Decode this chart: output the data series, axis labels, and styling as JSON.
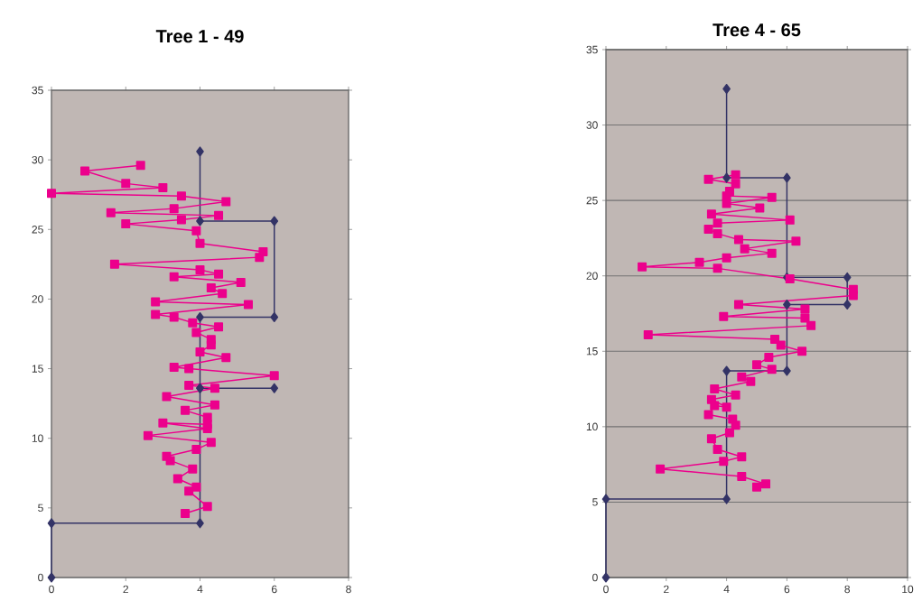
{
  "chart_data": [
    {
      "type": "line",
      "title": "Tree 1 - 49",
      "xlim": [
        0,
        8
      ],
      "ylim": [
        0,
        35
      ],
      "xticks": [
        0,
        2,
        4,
        6,
        8
      ],
      "yticks": [
        0,
        5,
        10,
        15,
        20,
        25,
        30,
        35
      ],
      "grid": false,
      "series": [
        {
          "color": "#333366",
          "marker": "diamond",
          "x": [
            0,
            0,
            4,
            4,
            6,
            4,
            4,
            6,
            6,
            4,
            4
          ],
          "values": [
            0,
            3.9,
            3.9,
            13.6,
            13.6,
            13.6,
            18.7,
            18.7,
            25.6,
            25.6,
            30.6
          ]
        },
        {
          "color": "#ec008c",
          "marker": "square",
          "x": [
            3.6,
            4.2,
            3.7,
            3.9,
            3.4,
            3.8,
            3.2,
            3.1,
            3.9,
            4.3,
            2.6,
            4.2,
            3.0,
            4.2,
            4.2,
            3.6,
            4.4,
            3.1,
            4.4,
            3.7,
            6.0,
            3.7,
            3.3,
            4.7,
            4.0,
            4.3,
            4.3,
            3.9,
            4.5,
            3.8,
            3.3,
            2.8,
            5.3,
            2.8,
            4.6,
            4.3,
            5.1,
            3.3,
            4.5,
            4.0,
            1.7,
            5.6,
            5.7,
            4.0,
            3.9,
            2.0,
            3.5,
            4.5,
            1.6,
            3.3,
            4.7,
            3.5,
            0,
            3.0,
            2.0,
            0.9,
            2.4
          ],
          "values": [
            4.6,
            5.1,
            6.2,
            6.5,
            7.1,
            7.8,
            8.4,
            8.7,
            9.2,
            9.7,
            10.2,
            10.7,
            11.1,
            11.0,
            11.5,
            12.0,
            12.4,
            13.0,
            13.6,
            13.8,
            14.5,
            15.0,
            15.1,
            15.8,
            16.2,
            16.7,
            17.1,
            17.6,
            18.0,
            18.3,
            18.7,
            18.9,
            19.6,
            19.8,
            20.4,
            20.8,
            21.2,
            21.6,
            21.8,
            22.1,
            22.5,
            23.0,
            23.4,
            24.0,
            24.9,
            25.4,
            25.7,
            26.0,
            26.2,
            26.5,
            27.0,
            27.4,
            27.6,
            28.0,
            28.3,
            29.2,
            29.6
          ]
        }
      ]
    },
    {
      "type": "line",
      "title": "Tree 4 - 65",
      "xlim": [
        0,
        10
      ],
      "ylim": [
        0,
        35
      ],
      "xticks": [
        0,
        2,
        4,
        6,
        8,
        10
      ],
      "yticks": [
        0,
        5,
        10,
        15,
        20,
        25,
        30,
        35
      ],
      "grid": "y",
      "series": [
        {
          "color": "#333366",
          "marker": "diamond",
          "x": [
            0,
            0,
            4,
            4,
            6,
            6,
            8,
            8,
            6,
            6,
            4,
            4
          ],
          "values": [
            0,
            5.2,
            5.2,
            13.7,
            13.7,
            18.1,
            18.1,
            19.9,
            19.9,
            26.5,
            26.5,
            32.4
          ]
        },
        {
          "color": "#ec008c",
          "marker": "square",
          "x": [
            5.0,
            5.3,
            4.5,
            1.8,
            3.9,
            4.5,
            3.7,
            3.5,
            4.1,
            4.3,
            4.2,
            3.4,
            3.6,
            4.0,
            3.5,
            4.3,
            3.6,
            4.8,
            4.5,
            5.5,
            5.0,
            5.4,
            6.5,
            5.8,
            5.6,
            1.4,
            6.8,
            6.6,
            3.9,
            6.6,
            4.4,
            8.2,
            8.2,
            6.1,
            3.7,
            1.2,
            3.1,
            4.0,
            5.5,
            4.6,
            6.3,
            4.4,
            3.7,
            3.4,
            3.7,
            6.1,
            3.5,
            5.1,
            4.0,
            5.5,
            4.0,
            4.1,
            4.3,
            3.4,
            4.3
          ],
          "values": [
            6.0,
            6.2,
            6.7,
            7.2,
            7.7,
            8.0,
            8.5,
            9.2,
            9.6,
            10.1,
            10.5,
            10.8,
            11.4,
            11.3,
            11.8,
            12.1,
            12.5,
            13.0,
            13.3,
            13.8,
            14.1,
            14.6,
            15.0,
            15.4,
            15.8,
            16.1,
            16.7,
            17.2,
            17.3,
            17.8,
            18.1,
            18.7,
            19.1,
            19.8,
            20.5,
            20.6,
            20.9,
            21.2,
            21.5,
            21.8,
            22.3,
            22.4,
            22.8,
            23.1,
            23.5,
            23.7,
            24.1,
            24.5,
            24.8,
            25.2,
            25.3,
            25.6,
            26.1,
            26.4,
            26.7
          ]
        }
      ]
    }
  ]
}
